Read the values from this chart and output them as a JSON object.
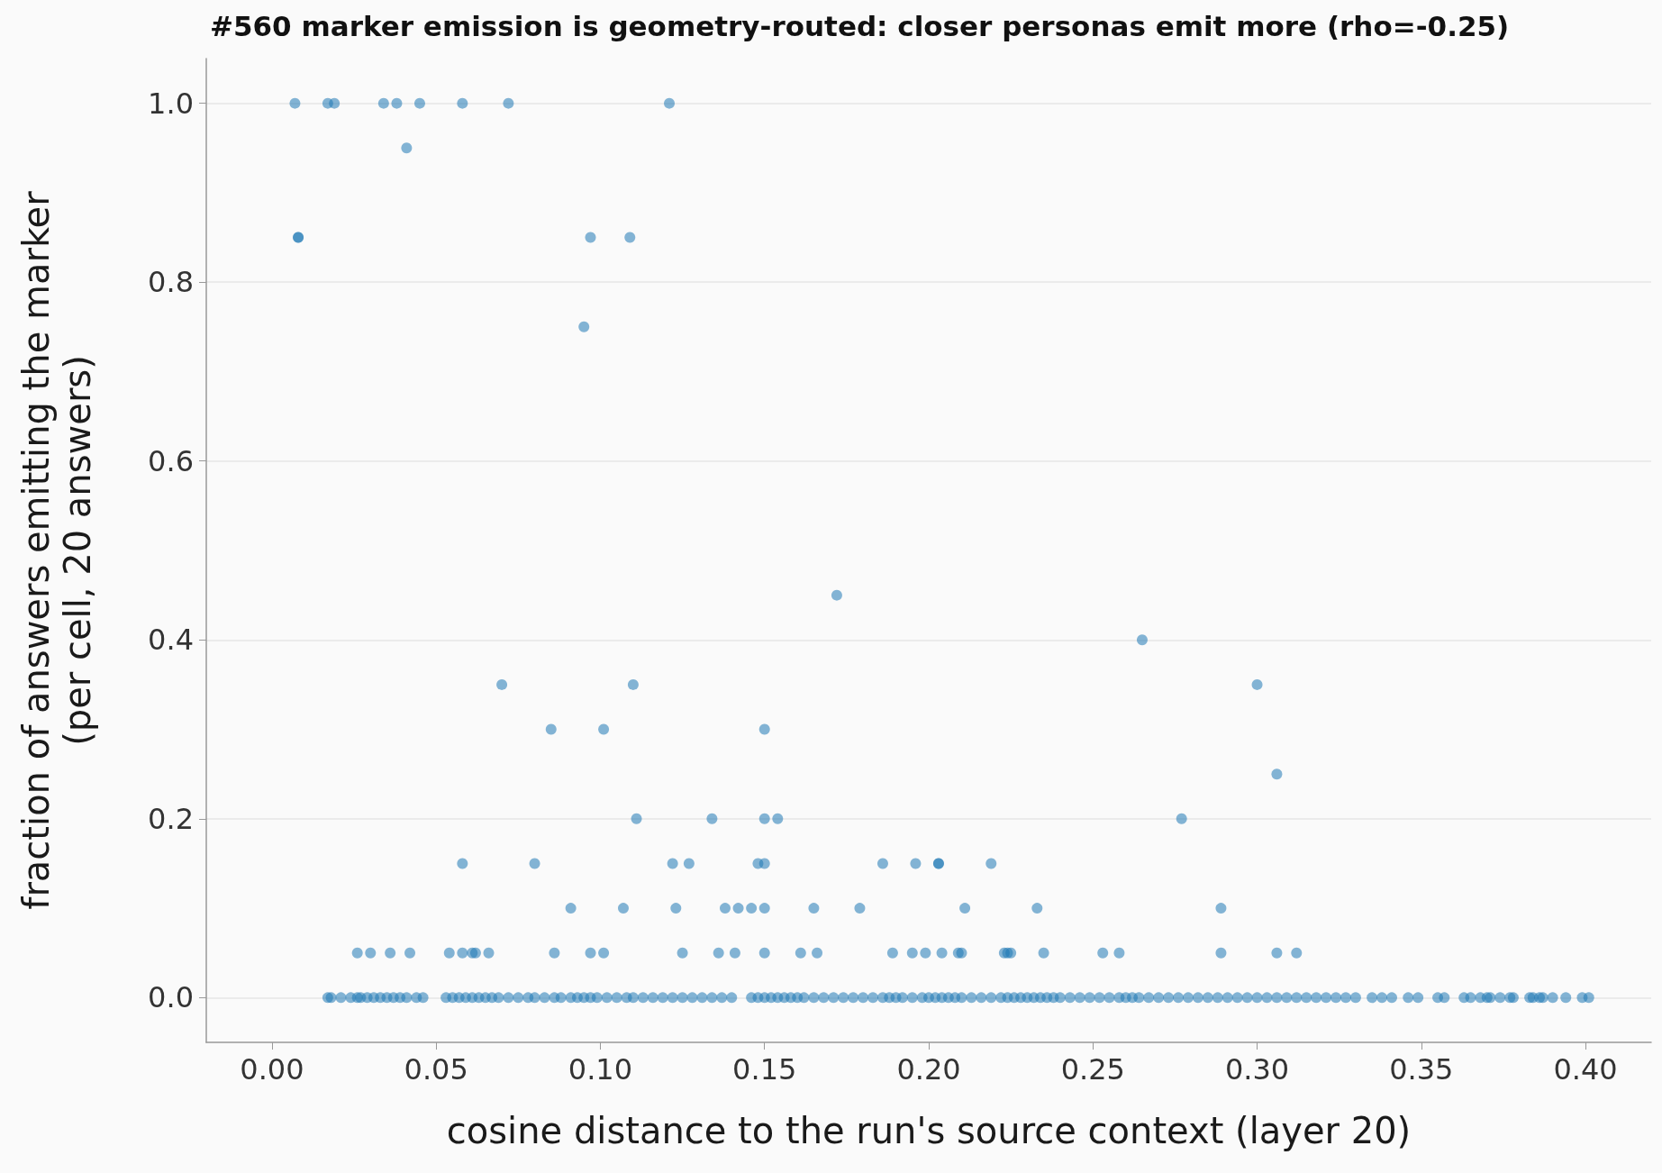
{
  "chart_data": {
    "type": "scatter",
    "title": "#560 marker emission is geometry-routed: closer personas emit more (rho=-0.25)",
    "xlabel": "cosine distance to the run's source context (layer 20)",
    "ylabel": "fraction of answers emitting the marker\n(per cell, 20 answers)",
    "series": [
      {
        "color": "#1f78b4",
        "x": [
          0.007,
          0.017,
          0.019,
          0.034,
          0.038,
          0.045,
          0.058,
          0.072,
          0.121,
          0.041,
          0.008,
          0.008,
          0.097,
          0.109,
          0.095,
          0.172,
          0.265,
          0.07,
          0.11,
          0.3,
          0.085,
          0.101,
          0.15,
          0.306,
          0.111,
          0.134,
          0.15,
          0.154,
          0.277,
          0.058,
          0.08,
          0.122,
          0.127,
          0.148,
          0.15,
          0.186,
          0.196,
          0.203,
          0.203,
          0.219,
          0.091,
          0.107,
          0.123,
          0.138,
          0.142,
          0.146,
          0.15,
          0.165,
          0.179,
          0.211,
          0.233,
          0.289,
          0.026,
          0.03,
          0.036,
          0.042,
          0.054,
          0.058,
          0.061,
          0.062,
          0.066,
          0.086,
          0.097,
          0.101,
          0.125,
          0.136,
          0.141,
          0.15,
          0.161,
          0.166,
          0.189,
          0.195,
          0.199,
          0.204,
          0.209,
          0.21,
          0.223,
          0.224,
          0.225,
          0.235,
          0.253,
          0.258,
          0.289,
          0.306,
          0.312,
          0.017,
          0.018,
          0.021,
          0.024,
          0.026,
          0.027,
          0.029,
          0.031,
          0.033,
          0.035,
          0.037,
          0.039,
          0.041,
          0.044,
          0.046,
          0.053,
          0.055,
          0.057,
          0.059,
          0.061,
          0.063,
          0.065,
          0.067,
          0.069,
          0.072,
          0.075,
          0.078,
          0.08,
          0.083,
          0.086,
          0.088,
          0.091,
          0.093,
          0.095,
          0.097,
          0.099,
          0.102,
          0.105,
          0.108,
          0.11,
          0.113,
          0.116,
          0.119,
          0.122,
          0.125,
          0.128,
          0.131,
          0.134,
          0.137,
          0.14,
          0.146,
          0.148,
          0.15,
          0.152,
          0.154,
          0.156,
          0.158,
          0.16,
          0.162,
          0.165,
          0.168,
          0.171,
          0.174,
          0.177,
          0.18,
          0.183,
          0.186,
          0.188,
          0.19,
          0.192,
          0.195,
          0.198,
          0.2,
          0.202,
          0.204,
          0.206,
          0.208,
          0.21,
          0.213,
          0.216,
          0.219,
          0.222,
          0.224,
          0.226,
          0.228,
          0.23,
          0.232,
          0.234,
          0.236,
          0.238,
          0.24,
          0.243,
          0.246,
          0.249,
          0.252,
          0.255,
          0.258,
          0.26,
          0.262,
          0.264,
          0.267,
          0.27,
          0.273,
          0.276,
          0.279,
          0.282,
          0.285,
          0.288,
          0.291,
          0.294,
          0.297,
          0.3,
          0.303,
          0.306,
          0.309,
          0.312,
          0.315,
          0.318,
          0.321,
          0.324,
          0.327,
          0.33,
          0.335,
          0.338,
          0.341,
          0.346,
          0.349,
          0.355,
          0.357,
          0.363,
          0.365,
          0.368,
          0.37,
          0.371,
          0.374,
          0.377,
          0.378,
          0.383,
          0.384,
          0.386,
          0.387,
          0.39,
          0.394,
          0.399,
          0.401
        ],
        "values": [
          1.0,
          1.0,
          1.0,
          1.0,
          1.0,
          1.0,
          1.0,
          1.0,
          1.0,
          0.95,
          0.85,
          0.85,
          0.85,
          0.85,
          0.75,
          0.45,
          0.4,
          0.35,
          0.35,
          0.35,
          0.3,
          0.3,
          0.3,
          0.25,
          0.2,
          0.2,
          0.2,
          0.2,
          0.2,
          0.15,
          0.15,
          0.15,
          0.15,
          0.15,
          0.15,
          0.15,
          0.15,
          0.15,
          0.15,
          0.15,
          0.1,
          0.1,
          0.1,
          0.1,
          0.1,
          0.1,
          0.1,
          0.1,
          0.1,
          0.1,
          0.1,
          0.1,
          0.05,
          0.05,
          0.05,
          0.05,
          0.05,
          0.05,
          0.05,
          0.05,
          0.05,
          0.05,
          0.05,
          0.05,
          0.05,
          0.05,
          0.05,
          0.05,
          0.05,
          0.05,
          0.05,
          0.05,
          0.05,
          0.05,
          0.05,
          0.05,
          0.05,
          0.05,
          0.05,
          0.05,
          0.05,
          0.05,
          0.05,
          0.05,
          0.05,
          0,
          0,
          0,
          0,
          0,
          0,
          0,
          0,
          0,
          0,
          0,
          0,
          0,
          0,
          0,
          0,
          0,
          0,
          0,
          0,
          0,
          0,
          0,
          0,
          0,
          0,
          0,
          0,
          0,
          0,
          0,
          0,
          0,
          0,
          0,
          0,
          0,
          0,
          0,
          0,
          0,
          0,
          0,
          0,
          0,
          0,
          0,
          0,
          0,
          0,
          0,
          0,
          0,
          0,
          0,
          0,
          0,
          0,
          0,
          0,
          0,
          0,
          0,
          0,
          0,
          0,
          0,
          0,
          0,
          0,
          0,
          0,
          0,
          0,
          0,
          0,
          0,
          0,
          0,
          0,
          0,
          0,
          0,
          0,
          0,
          0,
          0,
          0,
          0,
          0,
          0,
          0,
          0,
          0,
          0,
          0,
          0,
          0,
          0,
          0,
          0,
          0,
          0,
          0,
          0,
          0,
          0,
          0,
          0,
          0,
          0,
          0,
          0,
          0,
          0,
          0,
          0,
          0,
          0,
          0,
          0,
          0,
          0,
          0,
          0,
          0,
          0,
          0,
          0,
          0,
          0,
          0,
          0,
          0,
          0,
          0,
          0,
          0,
          0,
          0,
          0,
          0,
          0,
          0,
          0
        ]
      }
    ],
    "xlim": [
      -0.02,
      0.42
    ],
    "xticks": [
      {
        "value": 0,
        "label": "0.00"
      },
      {
        "value": 0.05,
        "label": "0.05"
      },
      {
        "value": 0.1,
        "label": "0.10"
      },
      {
        "value": 0.15,
        "label": "0.15"
      },
      {
        "value": 0.2,
        "label": "0.20"
      },
      {
        "value": 0.25,
        "label": "0.25"
      },
      {
        "value": 0.3,
        "label": "0.30"
      },
      {
        "value": 0.35,
        "label": "0.35"
      },
      {
        "value": 0.4,
        "label": "0.40"
      }
    ],
    "ylim": [
      -0.05,
      1.05
    ],
    "yticks": [
      {
        "value": 0,
        "label": "0.0"
      },
      {
        "value": 0.2,
        "label": "0.2"
      },
      {
        "value": 0.4,
        "label": "0.4"
      },
      {
        "value": 0.6,
        "label": "0.6"
      },
      {
        "value": 0.8,
        "label": "0.8"
      },
      {
        "value": 1,
        "label": "1.0"
      }
    ],
    "grid": "y",
    "marker": "circle"
  }
}
